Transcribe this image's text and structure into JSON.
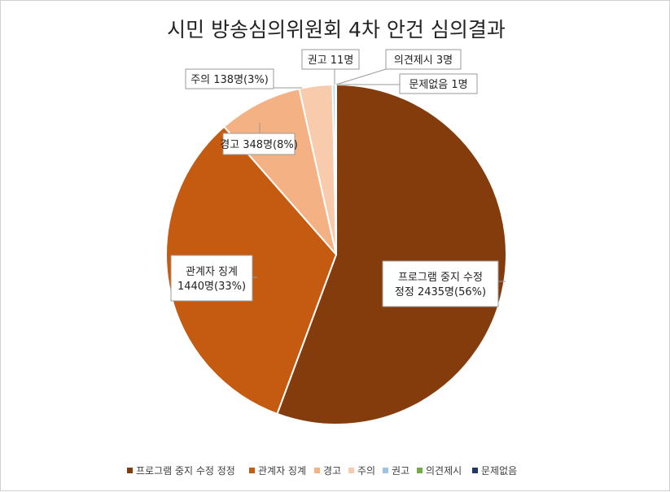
{
  "chart_data": {
    "type": "pie",
    "title": "시민 방송심의위원회 4차 안건 심의결과",
    "categories": [
      "프로그램 중지 수정 정정",
      "관계자 징계",
      "경고",
      "주의",
      "권고",
      "의견제시",
      "문제없음"
    ],
    "values": [
      2435,
      1440,
      348,
      138,
      11,
      3,
      1
    ],
    "colors": [
      "#843c0c",
      "#c55a11",
      "#f4b183",
      "#f8cbad",
      "#9dc3e6",
      "#70ad47",
      "#1f3864"
    ],
    "data_labels": [
      [
        "프로그램 중지 수정",
        "정정 2435명(56%)"
      ],
      [
        "관계자 징계",
        "1440명(33%)"
      ],
      [
        "경고 348명(8%)"
      ],
      [
        "주의 138명(3%)"
      ],
      [
        "권고 11명"
      ],
      [
        "의견제시 3명"
      ],
      [
        "문제없음 1명"
      ]
    ],
    "legend": {
      "position": "bottom",
      "entries": [
        "프로그램 중지 수정 정정",
        "관계자 징계",
        "경고",
        "주의",
        "권고",
        "의견제시",
        "문제없음"
      ]
    }
  }
}
